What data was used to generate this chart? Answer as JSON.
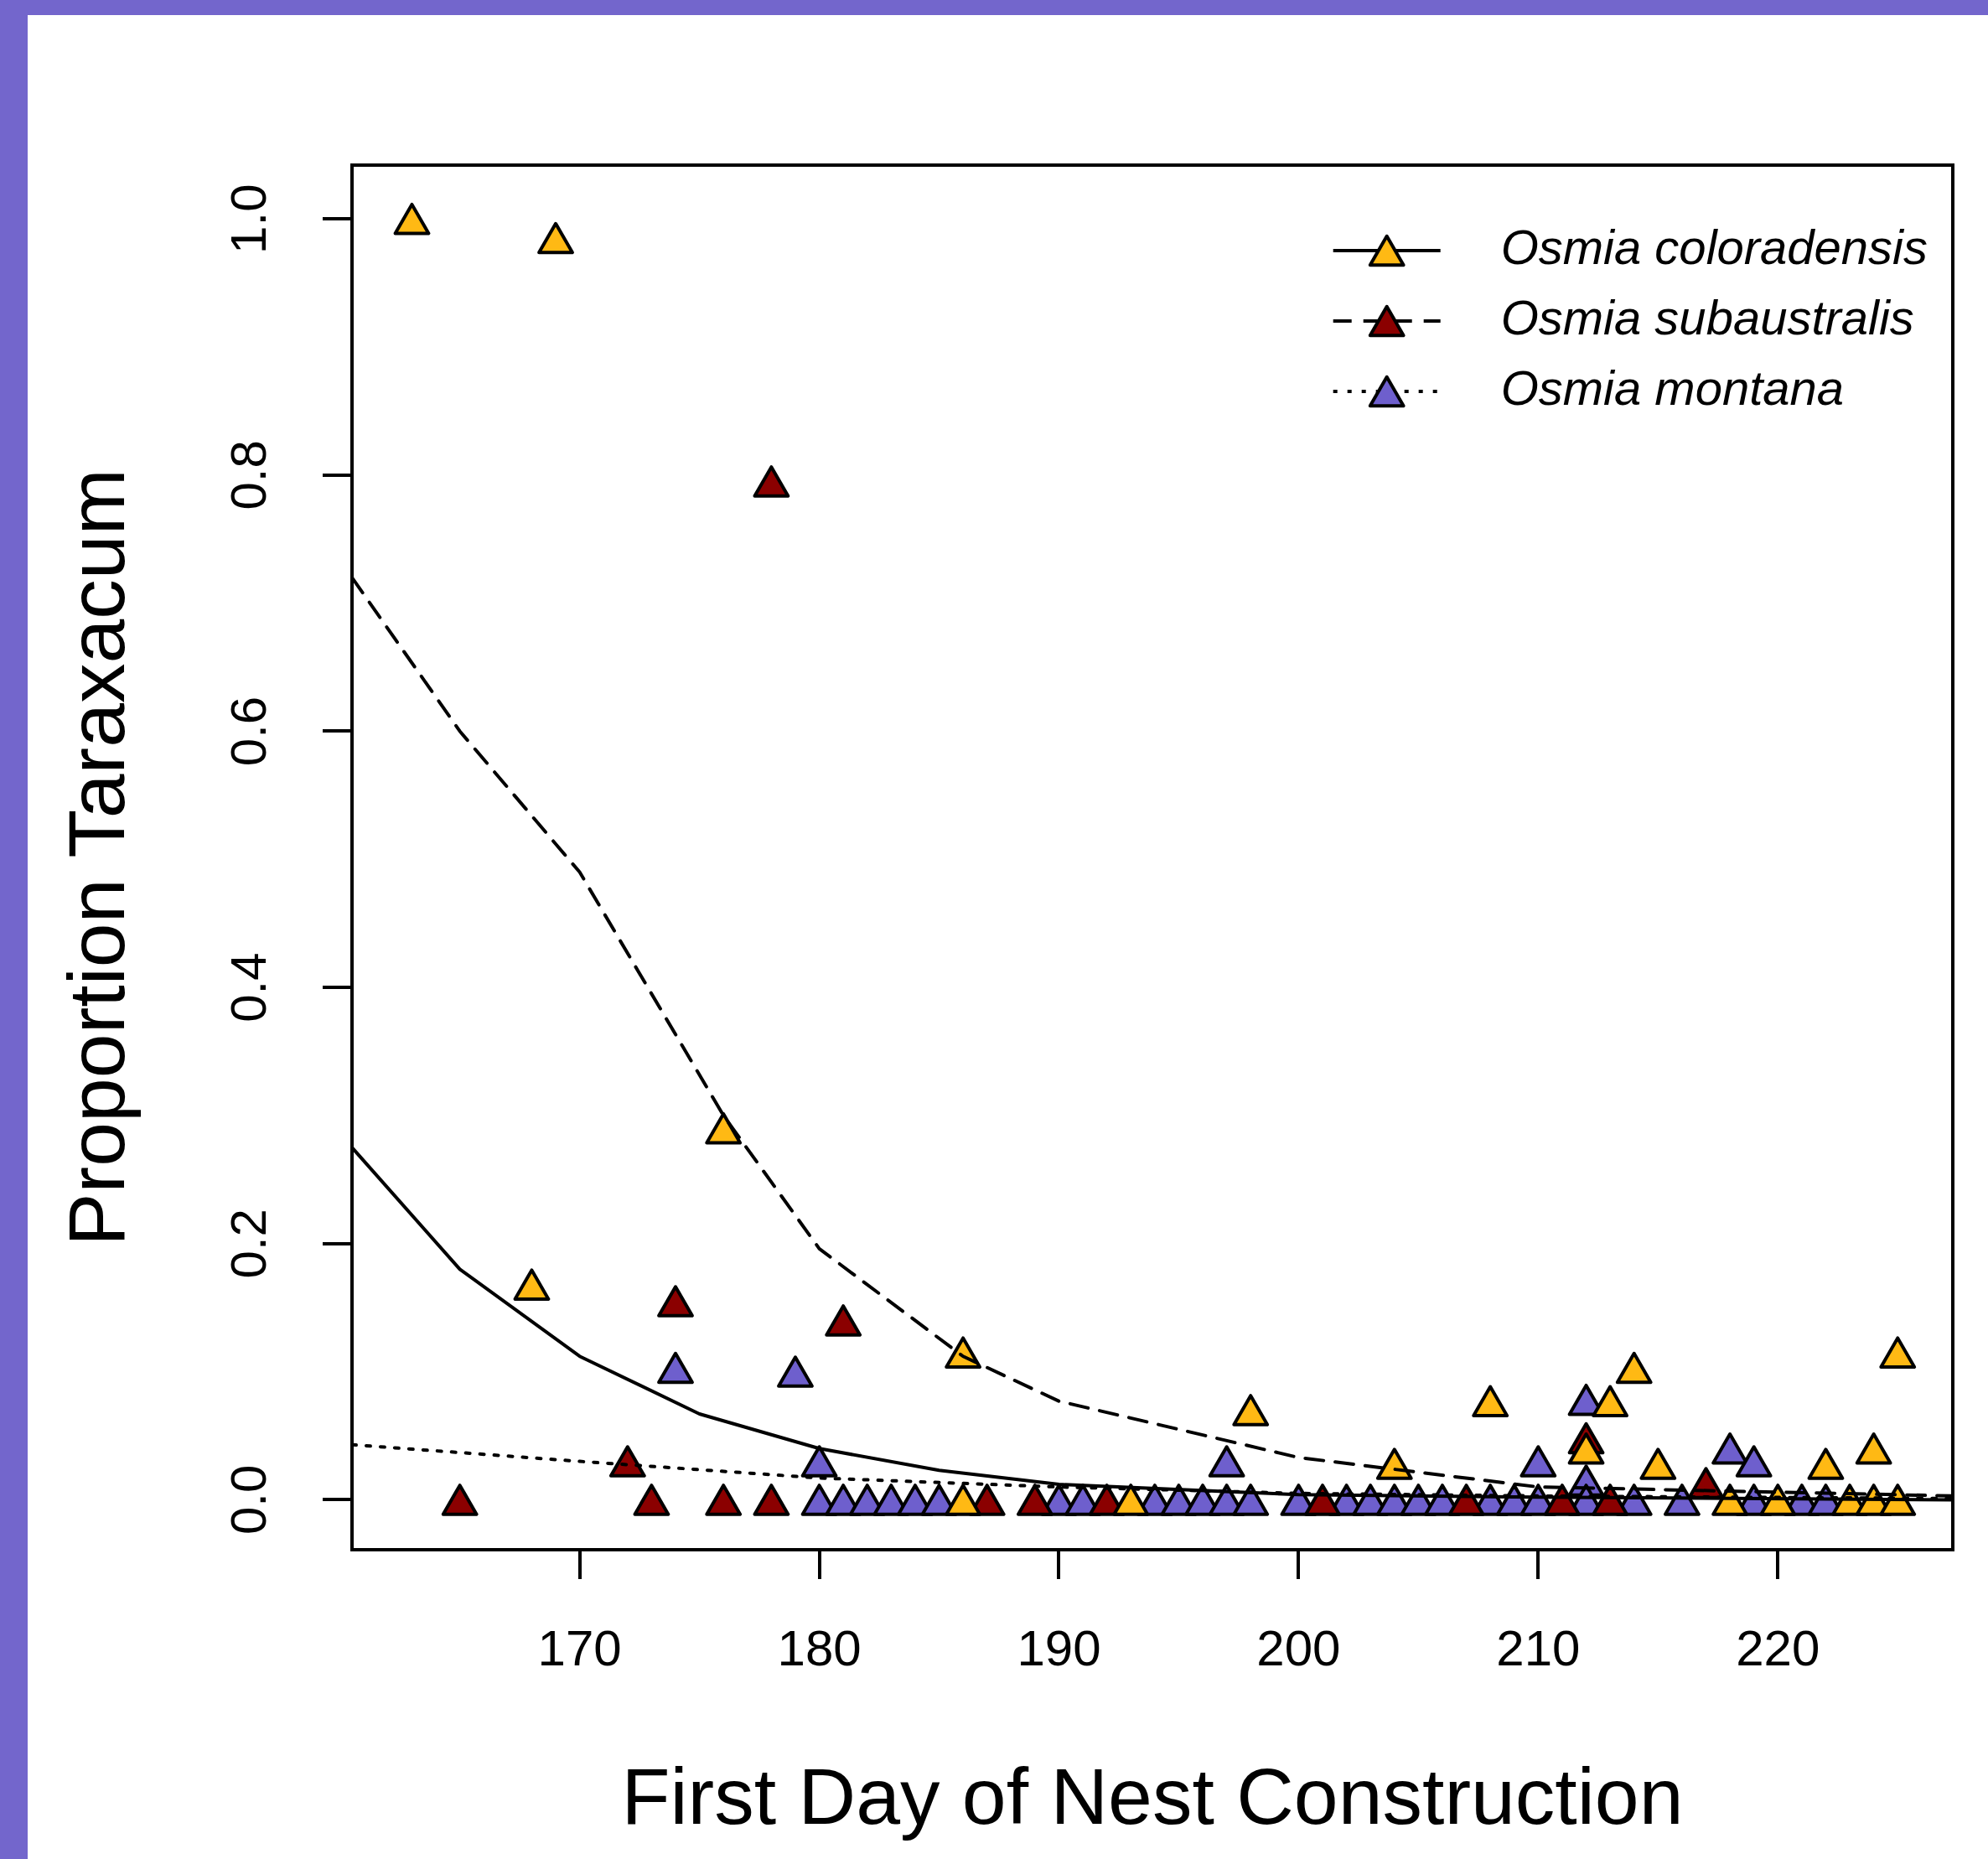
{
  "chart_data": {
    "type": "scatter",
    "xlabel": "First Day of Nest Construction",
    "ylabel": "Proportion Taraxacum",
    "xlim": [
      160.5,
      227.3
    ],
    "ylim": [
      -0.039,
      1.042
    ],
    "xticks": [
      170,
      180,
      190,
      200,
      210,
      220
    ],
    "yticks": [
      {
        "value": 0,
        "label": "0.0"
      },
      {
        "value": 0.2,
        "label": "0.2"
      },
      {
        "value": 0.4,
        "label": "0.4"
      },
      {
        "value": 0.6,
        "label": "0.6"
      },
      {
        "value": 0.8,
        "label": "0.8"
      },
      {
        "value": 1,
        "label": "1.0"
      }
    ],
    "grid": false,
    "legend": "top right",
    "marker": "triangle",
    "series": [
      {
        "name": "Osmia coloradensis",
        "type": "scatter",
        "color": "#ffb914",
        "x": [
          163,
          169,
          168,
          176,
          186,
          186,
          193,
          198,
          204,
          208,
          212,
          213,
          214,
          215,
          218,
          220,
          222,
          223,
          224,
          224,
          225,
          225
        ],
        "values": [
          1.0,
          0.985,
          0.168,
          0.29,
          0.115,
          0,
          0,
          0.07,
          0.028,
          0.077,
          0.04,
          0.077,
          0.103,
          0.028,
          0,
          0,
          0.028,
          0,
          0.04,
          0,
          0.115,
          0
        ]
      },
      {
        "name": "Osmia subaustralis",
        "type": "scatter",
        "color": "#8b0000",
        "x": [
          165,
          172,
          173,
          174,
          176,
          178,
          178,
          181,
          187,
          189,
          192,
          201,
          207,
          211,
          212,
          213,
          217
        ],
        "values": [
          0,
          0.03,
          0,
          0.155,
          0,
          0,
          0.795,
          0.14,
          0,
          0,
          0,
          0,
          0,
          0,
          0.048,
          0,
          0.013
        ]
      },
      {
        "name": "Osmia montana",
        "type": "scatter",
        "color": "#6e5fcd",
        "x": [
          174,
          179,
          180,
          180,
          181,
          182,
          183,
          184,
          185,
          190,
          191,
          194,
          195,
          196,
          197,
          197,
          198,
          200,
          202,
          203,
          204,
          205,
          206,
          208,
          209,
          210,
          210,
          212,
          212,
          212,
          214,
          216,
          218,
          219,
          219,
          221,
          222
        ],
        "values": [
          0.103,
          0.1,
          0.03,
          0,
          0,
          0,
          0,
          0,
          0,
          0,
          0,
          0,
          0,
          0,
          0.03,
          0,
          0,
          0,
          0,
          0,
          0,
          0,
          0,
          0,
          0,
          0.03,
          0,
          0.078,
          0.015,
          0,
          0,
          0,
          0.04,
          0.03,
          0,
          0,
          0
        ]
      },
      {
        "type": "line",
        "color": "#000000",
        "line_style": "solid",
        "marker": "none",
        "x": [
          160.5,
          165,
          170,
          175,
          180,
          185,
          190,
          200,
          210,
          227.3
        ],
        "values": [
          0.275,
          0.18,
          0.112,
          0.067,
          0.04,
          0.023,
          0.012,
          0.004,
          0.002,
          0
        ]
      },
      {
        "type": "line",
        "color": "#000000",
        "line_style": "dashed",
        "marker": "none",
        "x": [
          160.5,
          165,
          170,
          176,
          180,
          186,
          190,
          200,
          210,
          227.3
        ],
        "values": [
          0.72,
          0.6,
          0.49,
          0.3,
          0.196,
          0.112,
          0.077,
          0.033,
          0.01,
          0.003
        ]
      },
      {
        "type": "line",
        "color": "#000000",
        "line_style": "dotted",
        "marker": "none",
        "x": [
          160.5,
          170,
          180,
          190,
          200,
          210,
          227.3
        ],
        "values": [
          0.043,
          0.03,
          0.017,
          0.01,
          0.005,
          0.003,
          0.001
        ]
      }
    ]
  }
}
